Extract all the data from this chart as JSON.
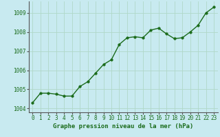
{
  "x": [
    0,
    1,
    2,
    3,
    4,
    5,
    6,
    7,
    8,
    9,
    10,
    11,
    12,
    13,
    14,
    15,
    16,
    17,
    18,
    19,
    20,
    21,
    22,
    23
  ],
  "y": [
    1004.3,
    1004.8,
    1004.8,
    1004.75,
    1004.65,
    1004.65,
    1005.15,
    1005.4,
    1005.85,
    1006.3,
    1006.55,
    1007.35,
    1007.7,
    1007.75,
    1007.7,
    1008.1,
    1008.2,
    1007.9,
    1007.65,
    1007.7,
    1008.0,
    1008.35,
    1009.0,
    1009.3
  ],
  "line_color": "#1a6b1a",
  "marker_color": "#1a6b1a",
  "bg_color": "#c8eaf0",
  "grid_color": "#b0d8c8",
  "xlabel": "Graphe pression niveau de la mer (hPa)",
  "xlabel_color": "#1a6b1a",
  "tick_color": "#1a6b1a",
  "ylim": [
    1003.8,
    1009.6
  ],
  "yticks": [
    1004,
    1005,
    1006,
    1007,
    1008,
    1009
  ],
  "xticks": [
    0,
    1,
    2,
    3,
    4,
    5,
    6,
    7,
    8,
    9,
    10,
    11,
    12,
    13,
    14,
    15,
    16,
    17,
    18,
    19,
    20,
    21,
    22,
    23
  ],
  "marker_size": 2.5,
  "line_width": 1.0,
  "tick_fontsize": 5.5,
  "label_fontsize": 6.5
}
